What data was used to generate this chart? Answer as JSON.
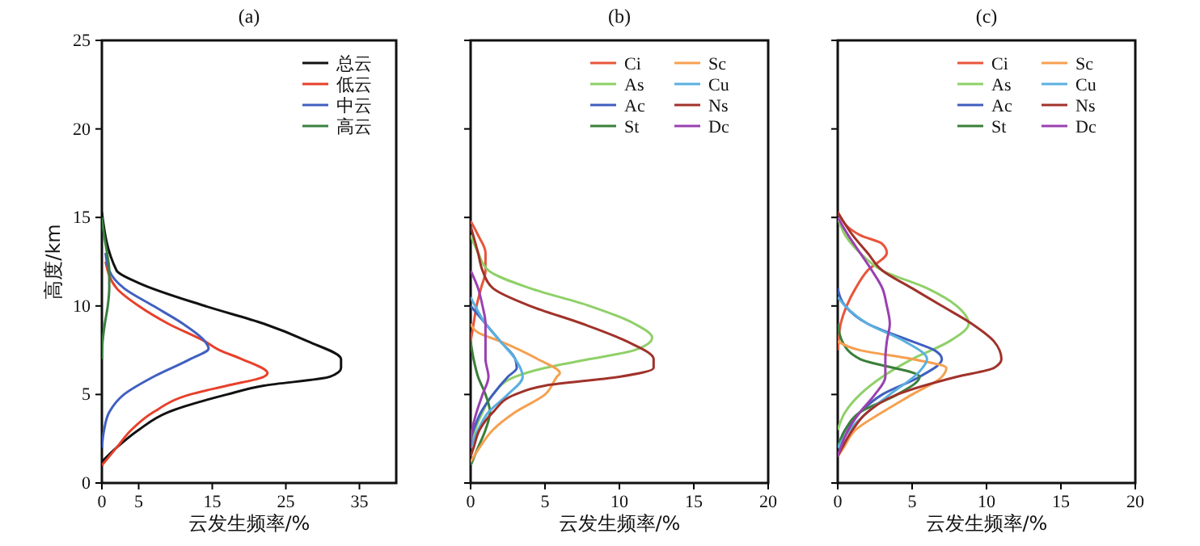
{
  "chart_data": [
    {
      "type": "line",
      "title": "(a)",
      "xlabel": "云发生频率/%",
      "ylabel": "高度/km",
      "xlim": [
        0,
        40
      ],
      "xticks": [
        0,
        5,
        15,
        25,
        35
      ],
      "ylim": [
        0,
        25
      ],
      "yticks": [
        0,
        5,
        10,
        15,
        20,
        25
      ],
      "legend": "top right",
      "grid": false,
      "series": [
        {
          "name": "总云",
          "color": "#111111",
          "x": [
            0,
            2,
            5,
            9,
            17,
            22,
            31,
            32.5,
            32.5,
            28,
            22,
            14,
            5,
            2,
            0
          ],
          "values": [
            1.2,
            2,
            3,
            4,
            5,
            5.5,
            6,
            6.5,
            7,
            8,
            9,
            10,
            11.3,
            12,
            15.3
          ]
        },
        {
          "name": "低云",
          "color": "#e8402a",
          "x": [
            0,
            2,
            4,
            7,
            12,
            17,
            22,
            22.5,
            19,
            16,
            14,
            9,
            5,
            2,
            0.5
          ],
          "values": [
            1,
            2,
            3,
            4,
            5,
            5.5,
            6,
            6.2,
            7,
            7.5,
            8,
            9,
            10,
            11,
            12.5
          ]
        },
        {
          "name": "中云",
          "color": "#4060c0",
          "x": [
            0,
            0.3,
            1,
            3,
            7,
            12,
            14.5,
            14,
            11,
            7,
            3,
            1,
            0.5
          ],
          "values": [
            2,
            3,
            4,
            5,
            6,
            7,
            7.6,
            8,
            9,
            10,
            11,
            12,
            13
          ]
        },
        {
          "name": "高云",
          "color": "#3a8040",
          "x": [
            0,
            0.1,
            0.4,
            0.8,
            1,
            1,
            0.7,
            0.3,
            0
          ],
          "values": [
            7,
            8,
            9,
            10,
            11,
            12,
            13,
            14,
            15
          ]
        }
      ]
    },
    {
      "type": "line",
      "title": "(b)",
      "xlabel": "云发生频率/%",
      "xlim": [
        0,
        20
      ],
      "xticks": [
        0,
        5,
        10,
        15,
        20
      ],
      "ylim": [
        0,
        25
      ],
      "yticks": [
        0,
        5,
        10,
        15,
        20,
        25
      ],
      "tick_labels": "x",
      "legend": "top right",
      "grid": false,
      "series": [
        {
          "name": "Ci",
          "color": "#e8553a",
          "x": [
            0,
            0.2,
            0.4,
            0.7,
            1,
            1,
            0.5,
            0
          ],
          "values": [
            8,
            9,
            10,
            11,
            12,
            13,
            14,
            14.8
          ]
        },
        {
          "name": "As",
          "color": "#8fd068",
          "x": [
            0,
            0.3,
            0.8,
            1.5,
            3,
            5,
            8,
            11,
            12.2,
            11,
            8,
            4,
            1.2,
            0.5,
            0
          ],
          "values": [
            2,
            3,
            4,
            5,
            6,
            6.5,
            7,
            7.5,
            8.2,
            9,
            10,
            11,
            12,
            13,
            14
          ]
        },
        {
          "name": "Ac",
          "color": "#3f5fbf",
          "x": [
            0,
            0.2,
            0.7,
            1.5,
            2.5,
            3.1,
            3,
            2,
            1,
            0
          ],
          "values": [
            2.5,
            3,
            4,
            5,
            6,
            6.5,
            7,
            8,
            9,
            10
          ]
        },
        {
          "name": "St",
          "color": "#3a7f3a",
          "x": [
            0,
            0.5,
            1,
            1.3,
            1,
            0.5,
            0.2,
            0
          ],
          "values": [
            1,
            2,
            3,
            4,
            5,
            6,
            7,
            8
          ]
        },
        {
          "name": "Sc",
          "color": "#f5a050",
          "x": [
            0,
            0.6,
            1.5,
            3,
            5,
            5.8,
            6,
            4.5,
            2,
            0.5,
            0
          ],
          "values": [
            1.2,
            2,
            3,
            4,
            5,
            6,
            6.2,
            7,
            8,
            8.5,
            9
          ]
        },
        {
          "name": "Cu",
          "color": "#5ab0e0",
          "x": [
            0,
            0.5,
            1.2,
            2.5,
            3.5,
            3,
            2,
            1,
            0.3,
            0
          ],
          "values": [
            2,
            3,
            4,
            5,
            6,
            7,
            8,
            9,
            10,
            10.5
          ]
        },
        {
          "name": "Ns",
          "color": "#a0322a",
          "x": [
            0,
            0.2,
            0.6,
            1.5,
            3,
            5,
            10,
            12.3,
            12.3,
            10.5,
            7.5,
            4,
            1.5,
            0.8,
            0.5,
            0
          ],
          "values": [
            1.5,
            2,
            3,
            4,
            5,
            5.5,
            6,
            6.5,
            7,
            8,
            9,
            10,
            11,
            12,
            13,
            14.5
          ]
        },
        {
          "name": "Dc",
          "color": "#9a40b0",
          "x": [
            0,
            0.1,
            0.4,
            0.8,
            1.2,
            1,
            1,
            1,
            0.8,
            0.5,
            0
          ],
          "values": [
            2,
            3,
            4,
            5,
            6,
            7,
            8,
            9,
            10,
            11,
            12
          ]
        }
      ]
    },
    {
      "type": "line",
      "title": "(c)",
      "xlabel": "云发生频率/%",
      "xlim": [
        0,
        20
      ],
      "xticks": [
        0,
        5,
        10,
        15,
        20
      ],
      "ylim": [
        0,
        25
      ],
      "yticks": [
        0,
        5,
        10,
        15,
        20,
        25
      ],
      "tick_labels": "x",
      "legend": "top right",
      "grid": false,
      "series": [
        {
          "name": "Ci",
          "color": "#e8553a",
          "x": [
            0,
            0.05,
            0.2,
            0.6,
            1.2,
            2,
            3.3,
            3,
            1.5,
            0
          ],
          "values": [
            7.5,
            8,
            9,
            10,
            11,
            12,
            13,
            13.5,
            14,
            15.3
          ]
        },
        {
          "name": "As",
          "color": "#8fd068",
          "x": [
            0,
            0.5,
            1.5,
            3,
            5,
            7.5,
            8.8,
            8,
            6,
            3,
            1.5,
            0.5,
            0
          ],
          "values": [
            3,
            4,
            5,
            6,
            7,
            8,
            9,
            10,
            11,
            12,
            13,
            14,
            15
          ]
        },
        {
          "name": "Ac",
          "color": "#3f5fbf",
          "x": [
            0,
            0.5,
            1.5,
            3,
            5.5,
            7,
            6.5,
            5,
            2,
            0.5,
            0
          ],
          "values": [
            2,
            3,
            4,
            5,
            6,
            7,
            7.5,
            8,
            9,
            10,
            11
          ]
        },
        {
          "name": "St",
          "color": "#3a7f3a",
          "x": [
            0,
            0.5,
            1.5,
            4,
            5.5,
            1.5,
            0.3,
            0
          ],
          "values": [
            2,
            3,
            4,
            5,
            6,
            7,
            8,
            9
          ]
        },
        {
          "name": "Sc",
          "color": "#f5a050",
          "x": [
            0,
            0.4,
            1.2,
            3,
            5,
            7,
            7.3,
            5,
            1.5,
            0
          ],
          "values": [
            1.5,
            2,
            3,
            4,
            5,
            6,
            6.5,
            7,
            7.5,
            8
          ]
        },
        {
          "name": "Cu",
          "color": "#5ab0e0",
          "x": [
            0,
            0.8,
            2,
            3.5,
            5.5,
            6,
            4.5,
            2,
            0.5,
            0
          ],
          "values": [
            2,
            3,
            4,
            5,
            6.3,
            7,
            8,
            9,
            10,
            10.5
          ]
        },
        {
          "name": "Ns",
          "color": "#a0322a",
          "x": [
            0,
            0.3,
            1,
            2,
            4,
            8,
            10.5,
            11,
            10.5,
            9,
            7,
            5,
            3,
            2,
            1,
            0
          ],
          "values": [
            1.5,
            2,
            3,
            4,
            5,
            6,
            6.5,
            7,
            8,
            9,
            10,
            11,
            12,
            13,
            14,
            15.3
          ]
        },
        {
          "name": "Dc",
          "color": "#9a40b0",
          "x": [
            0,
            0.2,
            0.7,
            1.5,
            2.5,
            3.2,
            3.2,
            3.3,
            3.5,
            3.3,
            3,
            2.3,
            1.5,
            0.7,
            0
          ],
          "values": [
            1.5,
            2,
            3,
            4,
            5,
            6,
            7,
            8,
            9,
            10,
            11,
            12,
            13,
            14,
            15
          ]
        }
      ]
    }
  ]
}
